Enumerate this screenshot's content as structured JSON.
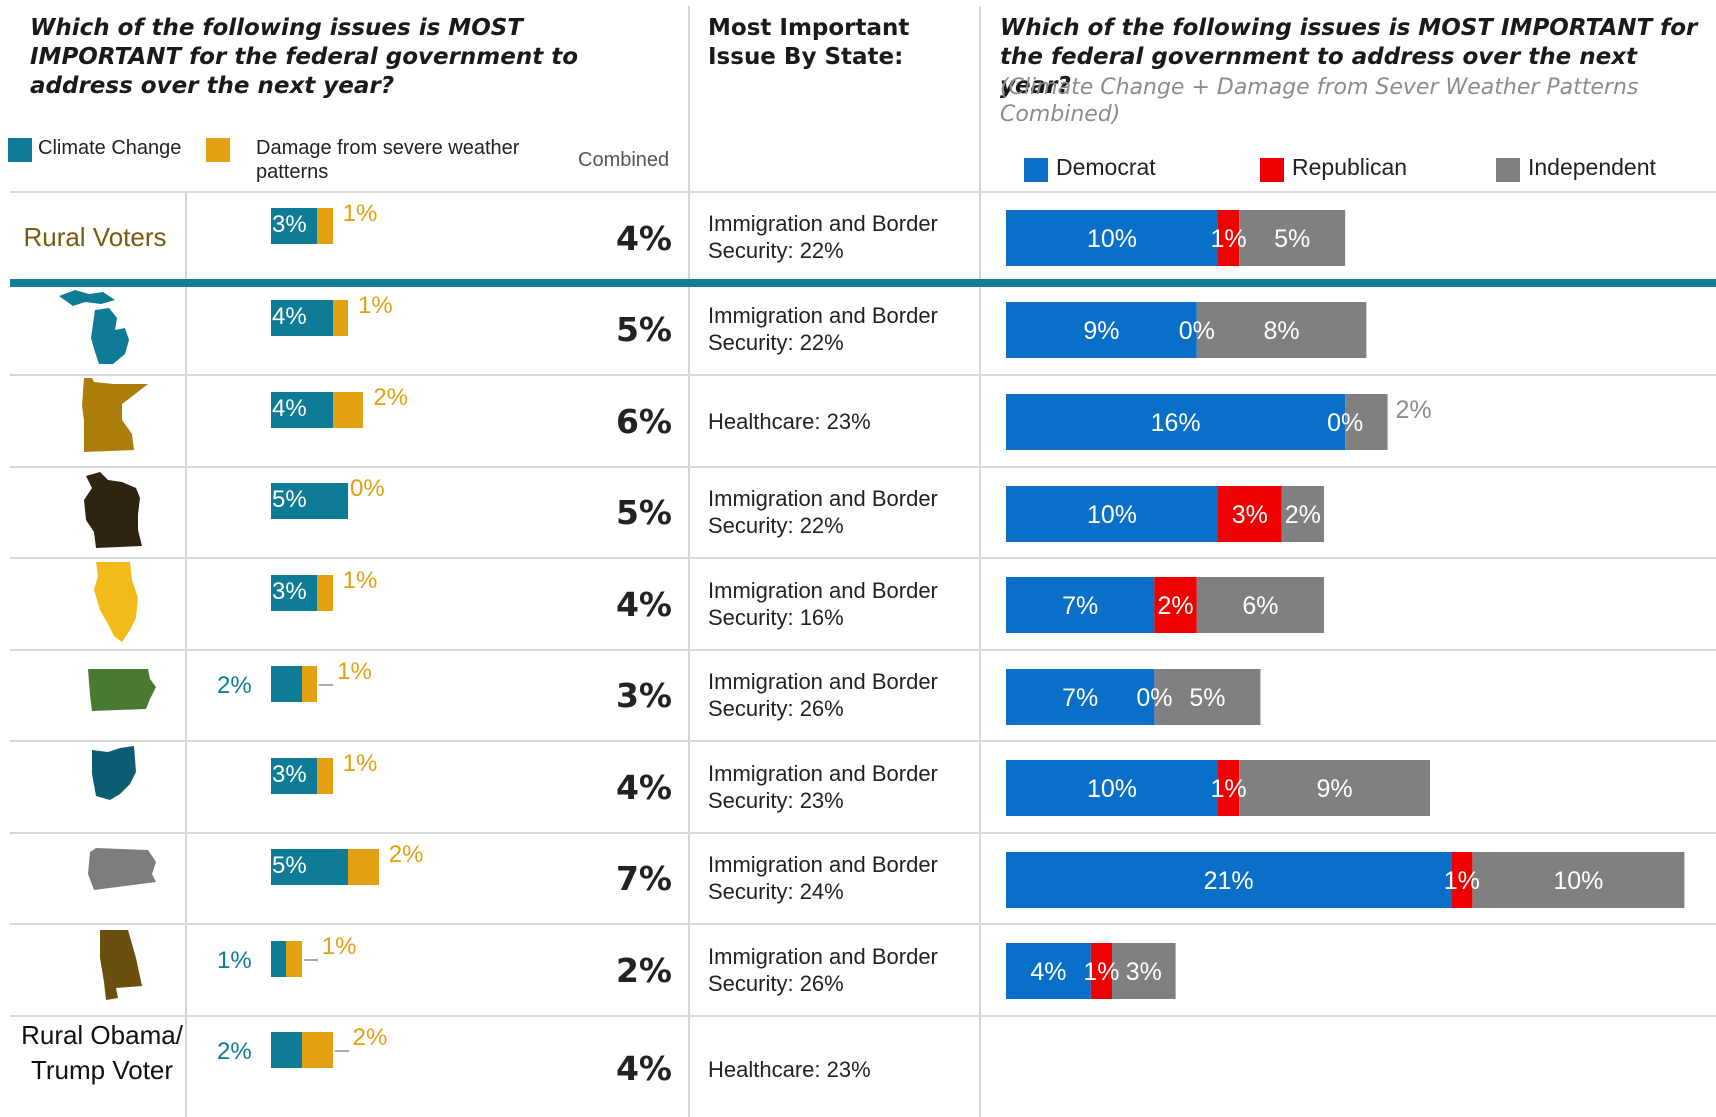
{
  "header": {
    "left_title": "Which of the following issues is MOST IMPORTANT for the federal government to address over the next year?",
    "mid_title": "Most Important Issue By State:",
    "right_title": "Which of the following issues is MOST IMPORTANT for the federal government to address over the next year?",
    "right_subtitle": "(Climate Change + Damage from Sever Weather Patterns Combined)"
  },
  "legend_left": {
    "climate_label": "Climate Change",
    "damage_label": "Damage from severe weather patterns",
    "combined_label": "Combined"
  },
  "legend_right": {
    "democrat_label": "Democrat",
    "republican_label": "Republican",
    "independent_label": "Independent"
  },
  "rows": [
    {
      "label": "Rural Voters",
      "icon": "rural-voters-label",
      "climate": "3%",
      "damage": "1%",
      "combined": "4%",
      "issue": "Immigration and Border Security: 22%",
      "dem": "10%",
      "rep": "1%",
      "ind": "5%"
    },
    {
      "label": "",
      "icon": "michigan-map-icon",
      "climate": "4%",
      "damage": "1%",
      "combined": "5%",
      "issue": "Immigration and Border Security: 22%",
      "dem": "9%",
      "rep": "0%",
      "ind": "8%"
    },
    {
      "label": "",
      "icon": "minnesota-map-icon",
      "climate": "4%",
      "damage": "2%",
      "combined": "6%",
      "issue": "Healthcare: 23%",
      "dem": "16%",
      "rep": "0%",
      "ind": "2%"
    },
    {
      "label": "",
      "icon": "wisconsin-map-icon",
      "climate": "5%",
      "damage": "0%",
      "combined": "5%",
      "issue": "Immigration and Border Security: 22%",
      "dem": "10%",
      "rep": "3%",
      "ind": "2%"
    },
    {
      "label": "",
      "icon": "illinois-map-icon",
      "climate": "3%",
      "damage": "1%",
      "combined": "4%",
      "issue": "Immigration and Border Security: 16%",
      "dem": "7%",
      "rep": "2%",
      "ind": "6%"
    },
    {
      "label": "",
      "icon": "iowa-map-icon",
      "climate": "2%",
      "damage": "1%",
      "combined": "3%",
      "issue": "Immigration and Border Security: 26%",
      "dem": "7%",
      "rep": "0%",
      "ind": "5%"
    },
    {
      "label": "",
      "icon": "ohio-map-icon",
      "climate": "3%",
      "damage": "1%",
      "combined": "4%",
      "issue": "Immigration and Border Security: 23%",
      "dem": "10%",
      "rep": "1%",
      "ind": "9%"
    },
    {
      "label": "",
      "icon": "pennsylvania-map-icon",
      "climate": "5%",
      "damage": "2%",
      "combined": "7%",
      "issue": "Immigration and Border Security: 24%",
      "dem": "21%",
      "rep": "1%",
      "ind": "10%"
    },
    {
      "label": "",
      "icon": "alabama-map-icon",
      "climate": "1%",
      "damage": "1%",
      "combined": "2%",
      "issue": "Immigration and Border Security: 26%",
      "dem": "4%",
      "rep": "1%",
      "ind": "3%"
    },
    {
      "label": "Rural Obama/ Trump Voter",
      "icon": "rural-obama-trump-label",
      "climate": "2%",
      "damage": "2%",
      "combined": "4%",
      "issue": "Healthcare: 23%",
      "dem": "",
      "rep": "",
      "ind": ""
    }
  ],
  "colors": {
    "climate": "#0e7c96",
    "damage": "#e3a011",
    "democrat": "#0a6fc9",
    "republican": "#f00000",
    "independent": "#808080",
    "rural_label": "#7a5a10",
    "divider": "#137e95"
  },
  "chart_data": [
    {
      "type": "bar",
      "stacked": true,
      "categories": [
        "Rural Voters",
        "",
        "",
        "",
        "",
        "",
        "",
        "",
        "",
        "Rural Obama/ Trump Voter"
      ],
      "series": [
        {
          "name": "Climate Change",
          "values": [
            3,
            4,
            4,
            5,
            3,
            2,
            3,
            5,
            1,
            2
          ]
        },
        {
          "name": "Damage from severe weather patterns",
          "values": [
            1,
            1,
            2,
            0,
            1,
            1,
            1,
            2,
            1,
            2
          ]
        }
      ],
      "combined": [
        4,
        5,
        6,
        5,
        4,
        3,
        4,
        7,
        2,
        4
      ],
      "orientation": "horizontal",
      "title": "Which of the following issues is MOST IMPORTANT for the federal government to address over the next year?"
    },
    {
      "type": "bar",
      "stacked": true,
      "categories": [
        "Rural Voters",
        "",
        "",
        "",
        "",
        "",
        "",
        "",
        ""
      ],
      "series": [
        {
          "name": "Democrat",
          "values": [
            10,
            9,
            16,
            10,
            7,
            7,
            10,
            21,
            4
          ]
        },
        {
          "name": "Republican",
          "values": [
            1,
            0,
            0,
            3,
            2,
            0,
            1,
            1,
            1
          ]
        },
        {
          "name": "Independent",
          "values": [
            5,
            8,
            2,
            2,
            6,
            5,
            9,
            10,
            3
          ]
        }
      ],
      "orientation": "horizontal",
      "title": "Which of the following issues is MOST IMPORTANT for the federal government to address over the next year?",
      "subtitle": "(Climate Change + Damage from Sever Weather Patterns Combined)",
      "legend": "top"
    }
  ]
}
